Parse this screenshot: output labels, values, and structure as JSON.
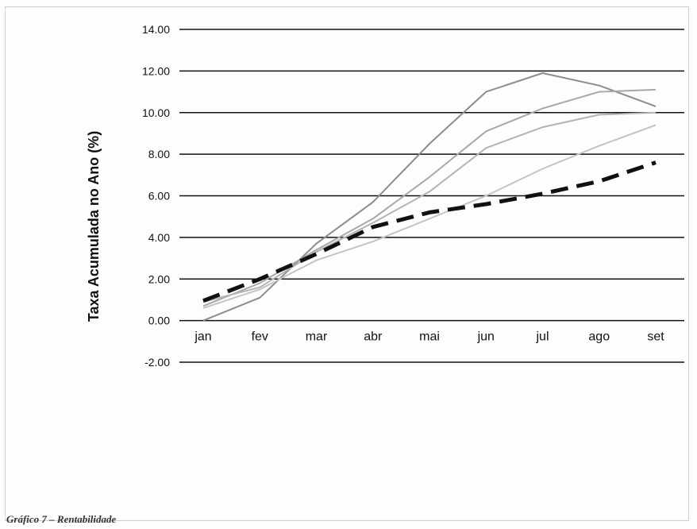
{
  "chart_data": {
    "type": "line",
    "title": "",
    "xlabel": "",
    "ylabel": "Taxa Acumulada no Ano (%)",
    "categories": [
      "jan",
      "fev",
      "mar",
      "abr",
      "mai",
      "jun",
      "jul",
      "ago",
      "set"
    ],
    "ylim": [
      -2,
      14
    ],
    "yticks": [
      -2,
      0,
      2,
      4,
      6,
      8,
      10,
      12,
      14
    ],
    "ytick_labels": [
      "-2.00",
      "0.00",
      "2.00",
      "4.00",
      "6.00",
      "8.00",
      "10.00",
      "12.00",
      "14.00"
    ],
    "grid": true,
    "legend": "none",
    "series": [
      {
        "values": [
          0.0,
          1.1,
          3.7,
          5.7,
          8.5,
          11.0,
          11.9,
          11.3,
          10.3
        ],
        "color": "#8c8c8c",
        "style": "solid"
      },
      {
        "values": [
          0.7,
          1.8,
          3.4,
          4.9,
          6.9,
          9.1,
          10.2,
          11.0,
          11.1
        ],
        "color": "#a8a8a8",
        "style": "solid"
      },
      {
        "values": [
          0.9,
          1.6,
          3.3,
          4.7,
          6.2,
          8.3,
          9.3,
          9.9,
          10.0
        ],
        "color": "#b4b4b4",
        "style": "solid"
      },
      {
        "values": [
          0.6,
          1.5,
          2.9,
          3.8,
          4.9,
          6.0,
          7.3,
          8.4,
          9.4
        ],
        "color": "#c4c4c4",
        "style": "solid"
      },
      {
        "values": [
          0.95,
          2.0,
          3.2,
          4.5,
          5.2,
          5.6,
          6.1,
          6.7,
          7.6
        ],
        "color": "#111111",
        "style": "dashed"
      }
    ]
  },
  "caption": "Gráfico 7 – Rentabilidade"
}
